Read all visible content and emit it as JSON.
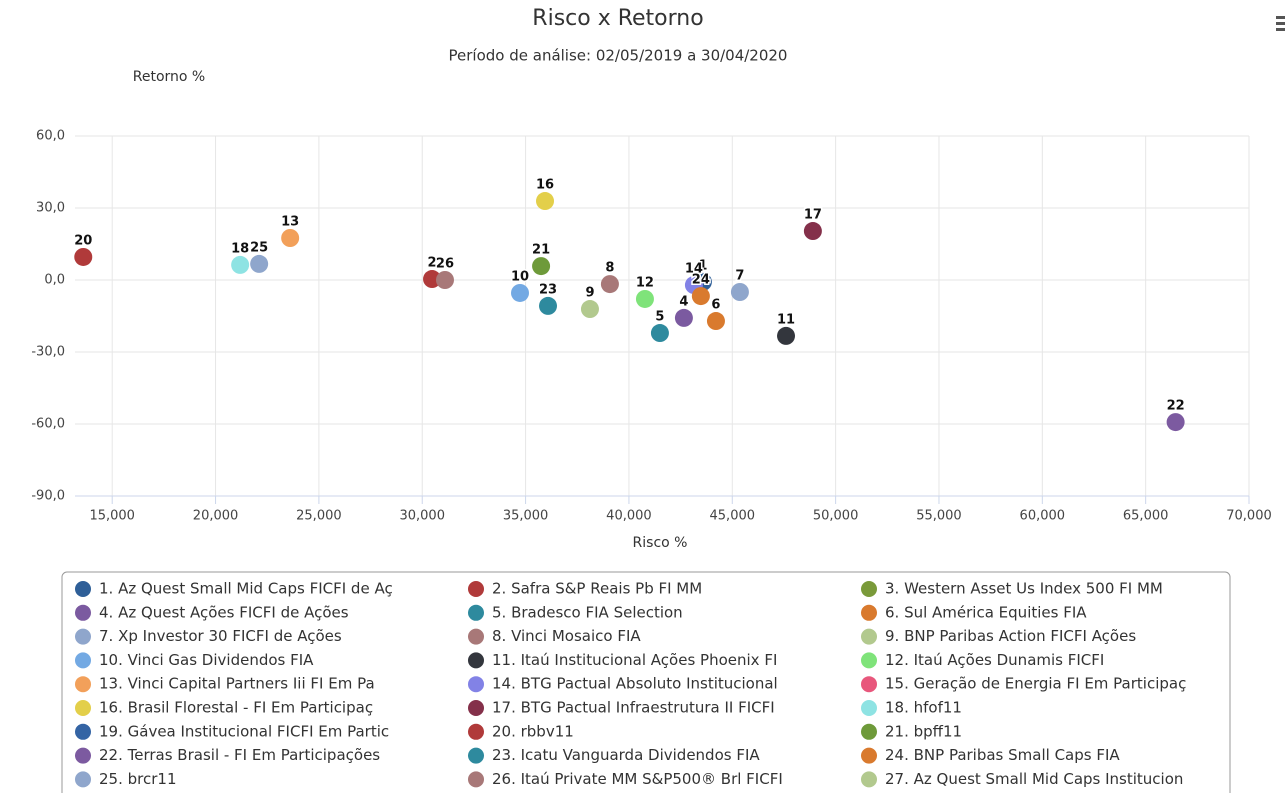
{
  "chart_data": {
    "type": "scatter",
    "title": "Risco x Retorno",
    "subtitle": "Período de análise: 02/05/2019 a 30/04/2020",
    "x_label": "Risco %",
    "y_label": "Retorno %",
    "xlim": [
      13200,
      70000
    ],
    "ylim": [
      -90,
      60
    ],
    "grid": true,
    "xticks": [
      {
        "value": 15000,
        "label": "15,000"
      },
      {
        "value": 20000,
        "label": "20,000"
      },
      {
        "value": 25000,
        "label": "25,000"
      },
      {
        "value": 30000,
        "label": "30,000"
      },
      {
        "value": 35000,
        "label": "35,000"
      },
      {
        "value": 40000,
        "label": "40,000"
      },
      {
        "value": 45000,
        "label": "45,000"
      },
      {
        "value": 50000,
        "label": "50,000"
      },
      {
        "value": 55000,
        "label": "55,000"
      },
      {
        "value": 60000,
        "label": "60,000"
      },
      {
        "value": 65000,
        "label": "65,000"
      },
      {
        "value": 70000,
        "label": "70,000"
      }
    ],
    "yticks": [
      {
        "value": 60,
        "label": "60,0"
      },
      {
        "value": 30,
        "label": "30,0"
      },
      {
        "value": 0,
        "label": "0,0"
      },
      {
        "value": -30,
        "label": "-30,0"
      },
      {
        "value": -60,
        "label": "-60,0"
      },
      {
        "value": -90,
        "label": "-90,0"
      }
    ],
    "series": [
      {
        "name": "1. Az Quest Small Mid Caps FICFI de Aç",
        "label": "1",
        "color": "#2f5f98",
        "x": 43580,
        "y": -0.8
      },
      {
        "name": "2. Safra S&P Reais Pb FI MM",
        "label": "2",
        "color": "#b03a3a",
        "x": 30475,
        "y": 0.4
      },
      {
        "name": "3. Western Asset Us Index 500 FI MM",
        "label": null,
        "color": "#7a9a3a",
        "x": null,
        "y": null
      },
      {
        "name": "4. Az Quest Ações FICFI de Ações",
        "label": "4",
        "color": "#7b5aa0",
        "x": 42660,
        "y": -15.8
      },
      {
        "name": "5. Bradesco FIA Selection",
        "label": "5",
        "color": "#2e8a9e",
        "x": 41500,
        "y": -22.1
      },
      {
        "name": "6. Sul América Equities FIA",
        "label": "6",
        "color": "#d97a2e",
        "x": 44210,
        "y": -17.1
      },
      {
        "name": "7. Xp Investor 30 FICFI de Ações",
        "label": "7",
        "color": "#8fa6cc",
        "x": 45370,
        "y": -5
      },
      {
        "name": "8. Vinci Mosaico FIA",
        "label": "8",
        "color": "#a87878",
        "x": 39080,
        "y": -1.7
      },
      {
        "name": "9. BNP Paribas Action FICFI Ações",
        "label": "9",
        "color": "#b2c98e",
        "x": 38115,
        "y": -12.1
      },
      {
        "name": "10. Vinci Gas Dividendos FIA",
        "label": "10",
        "color": "#73a9e3",
        "x": 34730,
        "y": -5.4
      },
      {
        "name": "11. Itaú Institucional Ações Phoenix FI",
        "label": "11",
        "color": "#33363d",
        "x": 47600,
        "y": -23.3
      },
      {
        "name": "12. Itaú Ações Dunamis FICFI",
        "label": "12",
        "color": "#7fe37a",
        "x": 40775,
        "y": -7.9
      },
      {
        "name": "13. Vinci Capital Partners Iii FI Em Pa",
        "label": "13",
        "color": "#f2a05a",
        "x": 23610,
        "y": 17.5
      },
      {
        "name": "14. BTG Pactual Absoluto Institucional",
        "label": "14",
        "color": "#8282e6",
        "x": 43145,
        "y": -2.1
      },
      {
        "name": "15. Geração de Energia FI Em Participaç",
        "label": null,
        "color": "#e8577c",
        "x": null,
        "y": null
      },
      {
        "name": "16. Brasil Florestal - FI Em Participaç",
        "label": "16",
        "color": "#e3cf4a",
        "x": 35940,
        "y": 32.9
      },
      {
        "name": "17. BTG Pactual Infraestrutura II FICFI",
        "label": "17",
        "color": "#84304a",
        "x": 48900,
        "y": 20.4
      },
      {
        "name": "18. hfof11",
        "label": "18",
        "color": "#8ee3e3",
        "x": 21190,
        "y": 6.3
      },
      {
        "name": "19. Gávea Institucional FICFI Em Partic",
        "label": null,
        "color": "#3464a4",
        "x": null,
        "y": null
      },
      {
        "name": "20. rbbv11",
        "label": "20",
        "color": "#b03a3a",
        "x": 13600,
        "y": 9.6
      },
      {
        "name": "21. bpff11",
        "label": "21",
        "color": "#6e9a3a",
        "x": 35750,
        "y": 5.8
      },
      {
        "name": "22. Terras Brasil - FI Em Participações",
        "label": "22",
        "color": "#7c5aa0",
        "x": 66450,
        "y": -59.2
      },
      {
        "name": "23. Icatu Vanguarda Dividendos FIA",
        "label": "23",
        "color": "#2e8a9e",
        "x": 36085,
        "y": -10.8
      },
      {
        "name": "24. BNP Paribas Small Caps FIA",
        "label": "24",
        "color": "#d97a2e",
        "x": 43480,
        "y": -6.7
      },
      {
        "name": "25. brcr11",
        "label": "25",
        "color": "#8fa6cc",
        "x": 22110,
        "y": 6.7
      },
      {
        "name": "26. Itaú Private MM S&P500® Brl FICFI",
        "label": "26",
        "color": "#a87878",
        "x": 31100,
        "y": 0
      },
      {
        "name": "27. Az Quest Small Mid Caps Institucion",
        "label": null,
        "color": "#b2c98e",
        "x": null,
        "y": null
      }
    ]
  }
}
